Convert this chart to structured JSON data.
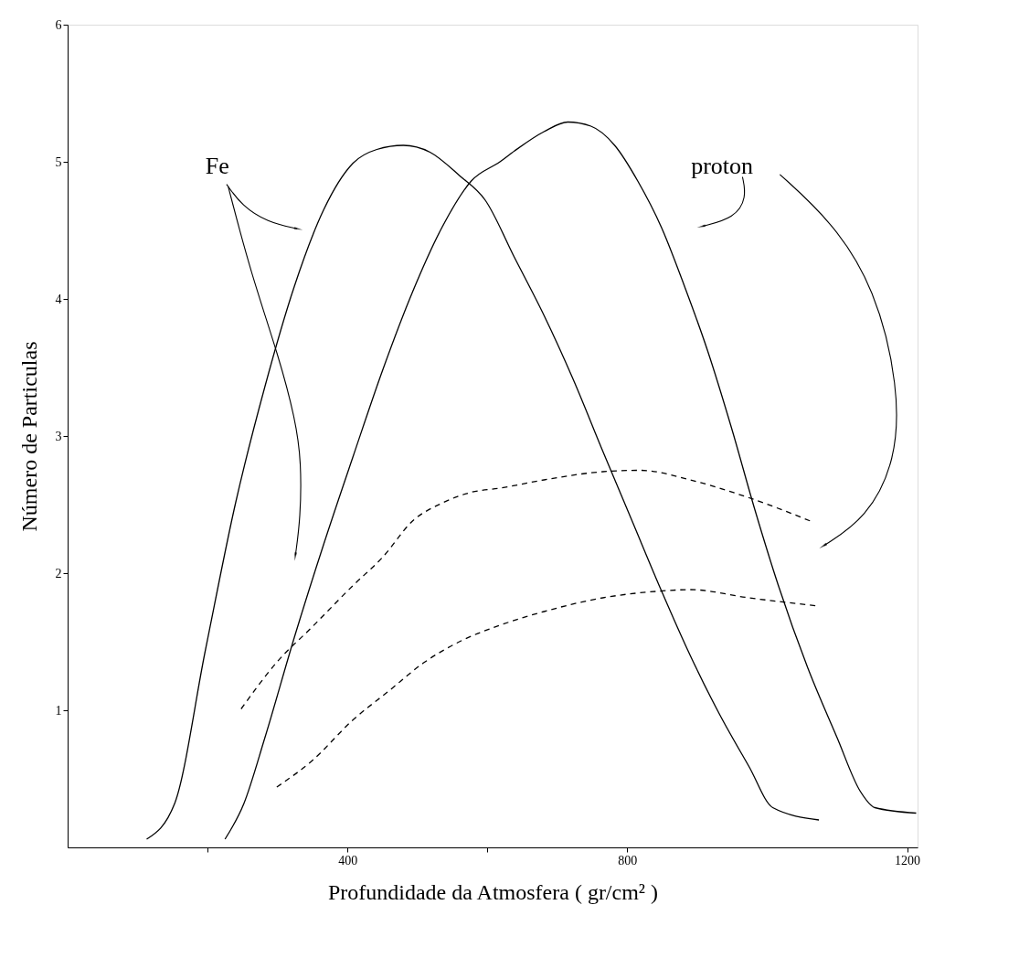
{
  "chart_data": {
    "type": "line",
    "xlabel": "Profundidade da Atmosfera  ( gr/cm² )",
    "ylabel": "Número de Particulas",
    "xlim": [
      0,
      1215
    ],
    "ylim": [
      0,
      6
    ],
    "xticks": [
      {
        "value": 200,
        "label": null
      },
      400,
      {
        "value": 600,
        "label": null
      },
      800,
      1200
    ],
    "yticks": [
      1,
      2,
      3,
      4,
      5,
      6
    ],
    "grid": false,
    "marker": "none",
    "annotations": [
      "Fe",
      "proton"
    ],
    "series": [
      {
        "color": "#000000",
        "line_style": "solid",
        "x": [
          113,
          153,
          197,
          240,
          282,
          324,
          366,
          408,
          442,
          480,
          518,
          560,
          597,
          639,
          681,
          723,
          765,
          807,
          849,
          890,
          932,
          974,
          1008,
          1074
        ],
        "values": [
          0.06,
          0.32,
          1.44,
          2.51,
          3.36,
          4.09,
          4.65,
          4.99,
          5.09,
          5.12,
          5.07,
          4.9,
          4.72,
          4.3,
          3.88,
          3.41,
          2.89,
          2.38,
          1.87,
          1.4,
          0.97,
          0.59,
          0.29,
          0.2
        ]
      },
      {
        "color": "#000000",
        "line_style": "solid",
        "x": [
          225,
          252,
          282,
          324,
          366,
          408,
          451,
          493,
          535,
          577,
          618,
          639,
          681,
          715,
          748,
          782,
          815,
          849,
          882,
          915,
          949,
          982,
          1016,
          1058,
          1100,
          1133,
          1154,
          1213
        ],
        "values": [
          0.06,
          0.32,
          0.8,
          1.53,
          2.21,
          2.85,
          3.49,
          4.05,
          4.52,
          4.86,
          5.0,
          5.08,
          5.22,
          5.29,
          5.26,
          5.12,
          4.86,
          4.52,
          4.09,
          3.62,
          3.06,
          2.47,
          1.91,
          1.31,
          0.8,
          0.41,
          0.29,
          0.25
        ]
      },
      {
        "color": "#000000",
        "line_style": "dashed",
        "x": [
          248,
          299,
          350,
          408,
          451,
          493,
          535,
          577,
          618,
          681,
          765,
          819,
          890,
          974,
          1062
        ],
        "values": [
          1.01,
          1.35,
          1.61,
          1.91,
          2.12,
          2.38,
          2.51,
          2.59,
          2.62,
          2.68,
          2.74,
          2.75,
          2.68,
          2.55,
          2.38
        ]
      },
      {
        "color": "#000000",
        "line_style": "dashed",
        "x": [
          299,
          349,
          408,
          459,
          510,
          560,
          618,
          681,
          765,
          849,
          890,
          974,
          1074
        ],
        "values": [
          0.44,
          0.63,
          0.93,
          1.14,
          1.35,
          1.5,
          1.62,
          1.72,
          1.82,
          1.87,
          1.88,
          1.82,
          1.76
        ]
      }
    ]
  }
}
